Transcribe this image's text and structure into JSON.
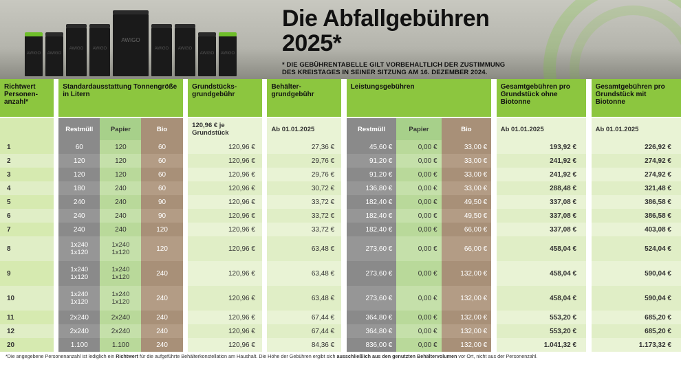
{
  "hero": {
    "title_line1": "Die Abfallgebühren",
    "title_line2": "2025*",
    "disclaimer_l1": "* Die Gebührentabelle gilt vorbehaltlich der Zustimmung",
    "disclaimer_l2": "des Kreistages in seiner Sitzung am 16. Dezember 2024.",
    "bin_brand": "AWIGO"
  },
  "colors": {
    "accent_green": "#8cc63f",
    "light_green": "#e9f3d5",
    "mid_green": "#b9d99a",
    "grey": "#8a8a8a",
    "tan": "#a89078"
  },
  "headers": {
    "personen": "Richtwert Personen-anzahl*",
    "standard": "Standardausstattung Tonnengröße in Litern",
    "grundstuecks": "Grundstücks-grundgebühr",
    "behaelter": "Behälter-grundgebühr",
    "leistungs": "Leistungsgebühren",
    "gesamt_ohne": "Gesamtgebühren pro Grundstück ohne Biotonne",
    "gesamt_mit": "Gesamtgebühren pro Grundstück mit Biotonne",
    "sub_rest": "Restmüll",
    "sub_papier": "Papier",
    "sub_bio": "Bio",
    "sub_grund": "120,96 € je Grundstück",
    "sub_ab": "Ab 01.01.2025"
  },
  "rows": [
    {
      "p": "1",
      "r": "60",
      "pa": "120",
      "b": "60",
      "g": "120,96 €",
      "beh": "27,36 €",
      "lr": "45,60 €",
      "lp": "0,00 €",
      "lb": "33,00 €",
      "t1": "193,92 €",
      "t2": "226,92 €"
    },
    {
      "p": "2",
      "r": "120",
      "pa": "120",
      "b": "60",
      "g": "120,96 €",
      "beh": "29,76 €",
      "lr": "91,20 €",
      "lp": "0,00 €",
      "lb": "33,00 €",
      "t1": "241,92 €",
      "t2": "274,92 €"
    },
    {
      "p": "3",
      "r": "120",
      "pa": "120",
      "b": "60",
      "g": "120,96 €",
      "beh": "29,76 €",
      "lr": "91,20 €",
      "lp": "0,00 €",
      "lb": "33,00 €",
      "t1": "241,92 €",
      "t2": "274,92 €"
    },
    {
      "p": "4",
      "r": "180",
      "pa": "240",
      "b": "60",
      "g": "120,96 €",
      "beh": "30,72 €",
      "lr": "136,80 €",
      "lp": "0,00 €",
      "lb": "33,00 €",
      "t1": "288,48 €",
      "t2": "321,48 €"
    },
    {
      "p": "5",
      "r": "240",
      "pa": "240",
      "b": "90",
      "g": "120,96 €",
      "beh": "33,72 €",
      "lr": "182,40 €",
      "lp": "0,00 €",
      "lb": "49,50 €",
      "t1": "337,08 €",
      "t2": "386,58 €"
    },
    {
      "p": "6",
      "r": "240",
      "pa": "240",
      "b": "90",
      "g": "120,96 €",
      "beh": "33,72 €",
      "lr": "182,40 €",
      "lp": "0,00 €",
      "lb": "49,50 €",
      "t1": "337,08 €",
      "t2": "386,58 €"
    },
    {
      "p": "7",
      "r": "240",
      "pa": "240",
      "b": "120",
      "g": "120,96 €",
      "beh": "33,72 €",
      "lr": "182,40 €",
      "lp": "0,00 €",
      "lb": "66,00 €",
      "t1": "337,08 €",
      "t2": "403,08 €"
    },
    {
      "p": "8",
      "r": "1x240\n1x120",
      "pa": "1x240\n1x120",
      "b": "120",
      "g": "120,96 €",
      "beh": "63,48 €",
      "lr": "273,60 €",
      "lp": "0,00 €",
      "lb": "66,00 €",
      "t1": "458,04 €",
      "t2": "524,04 €",
      "dbl": true
    },
    {
      "p": "9",
      "r": "1x240\n1x120",
      "pa": "1x240\n1x120",
      "b": "240",
      "g": "120,96 €",
      "beh": "63,48 €",
      "lr": "273,60 €",
      "lp": "0,00 €",
      "lb": "132,00 €",
      "t1": "458,04 €",
      "t2": "590,04 €",
      "dbl": true
    },
    {
      "p": "10",
      "r": "1x240\n1x120",
      "pa": "1x240\n1x120",
      "b": "240",
      "g": "120,96 €",
      "beh": "63,48 €",
      "lr": "273,60 €",
      "lp": "0,00 €",
      "lb": "132,00 €",
      "t1": "458,04 €",
      "t2": "590,04 €",
      "dbl": true
    },
    {
      "p": "11",
      "r": "2x240",
      "pa": "2x240",
      "b": "240",
      "g": "120,96 €",
      "beh": "67,44 €",
      "lr": "364,80 €",
      "lp": "0,00 €",
      "lb": "132,00 €",
      "t1": "553,20 €",
      "t2": "685,20 €"
    },
    {
      "p": "12",
      "r": "2x240",
      "pa": "2x240",
      "b": "240",
      "g": "120,96 €",
      "beh": "67,44 €",
      "lr": "364,80 €",
      "lp": "0,00 €",
      "lb": "132,00 €",
      "t1": "553,20 €",
      "t2": "685,20 €"
    },
    {
      "p": "20",
      "r": "1.100",
      "pa": "1.100",
      "b": "240",
      "g": "120,96 €",
      "beh": "84,36 €",
      "lr": "836,00 €",
      "lp": "0,00 €",
      "lb": "132,00 €",
      "t1": "1.041,32 €",
      "t2": "1.173,32 €"
    }
  ],
  "footnote": {
    "text_a": "*Die angegebene Personenanzahl ist lediglich ein ",
    "bold_a": "Richtwert",
    "text_b": " für die aufgeführte Behälterkonstellation am Haushalt. Die Höhe der Gebühren ergibt sich ",
    "bold_b": "ausschließlich aus den genutzten Behältervolumen",
    "text_c": " vor Ort, nicht aus der Personenzahl."
  }
}
